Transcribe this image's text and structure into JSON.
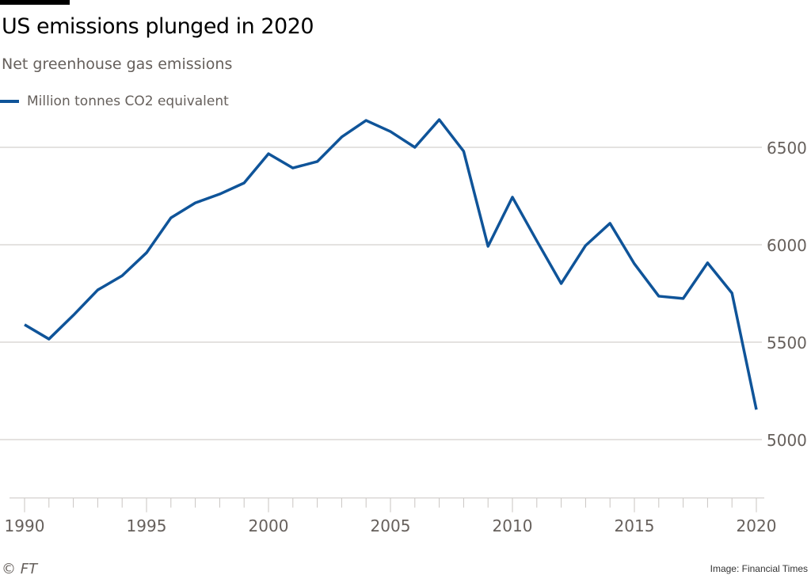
{
  "chart_data": {
    "type": "line",
    "title": "US emissions plunged in 2020",
    "subtitle": "Net greenhouse gas emissions",
    "xlabel": "",
    "ylabel": "",
    "legend": {
      "position": "top-left",
      "entries": [
        "Million tonnes CO2 equivalent"
      ]
    },
    "x": [
      1990,
      1991,
      1992,
      1993,
      1994,
      1995,
      1996,
      1997,
      1998,
      1999,
      2000,
      2001,
      2002,
      2003,
      2004,
      2005,
      2006,
      2007,
      2008,
      2009,
      2010,
      2011,
      2012,
      2013,
      2014,
      2015,
      2016,
      2017,
      2018,
      2019,
      2020
    ],
    "series": [
      {
        "name": "Million tonnes CO2 equivalent",
        "color": "#0f5499",
        "values": [
          5590,
          5516,
          5638,
          5768,
          5841,
          5959,
          6138,
          6215,
          6260,
          6317,
          6467,
          6394,
          6427,
          6553,
          6638,
          6581,
          6500,
          6642,
          6480,
          5992,
          6244,
          6020,
          5801,
          5996,
          6110,
          5902,
          5736,
          5724,
          5907,
          5752,
          5154
        ]
      }
    ],
    "xlim": [
      1990,
      2020
    ],
    "ylim": [
      4700,
      6690
    ],
    "yticks": [
      5000,
      5500,
      6000,
      6500
    ],
    "xticks": [
      1990,
      1995,
      2000,
      2005,
      2010,
      2015,
      2020
    ],
    "ytick_labels": [
      "5000",
      "5500",
      "6000",
      "6500"
    ],
    "xtick_labels": [
      "1990",
      "1995",
      "2000",
      "2005",
      "2010",
      "2015",
      "2020"
    ],
    "grid": true,
    "yaxis_side": "right"
  },
  "footer": {
    "source": "© FT",
    "credit": "Image: Financial Times"
  }
}
